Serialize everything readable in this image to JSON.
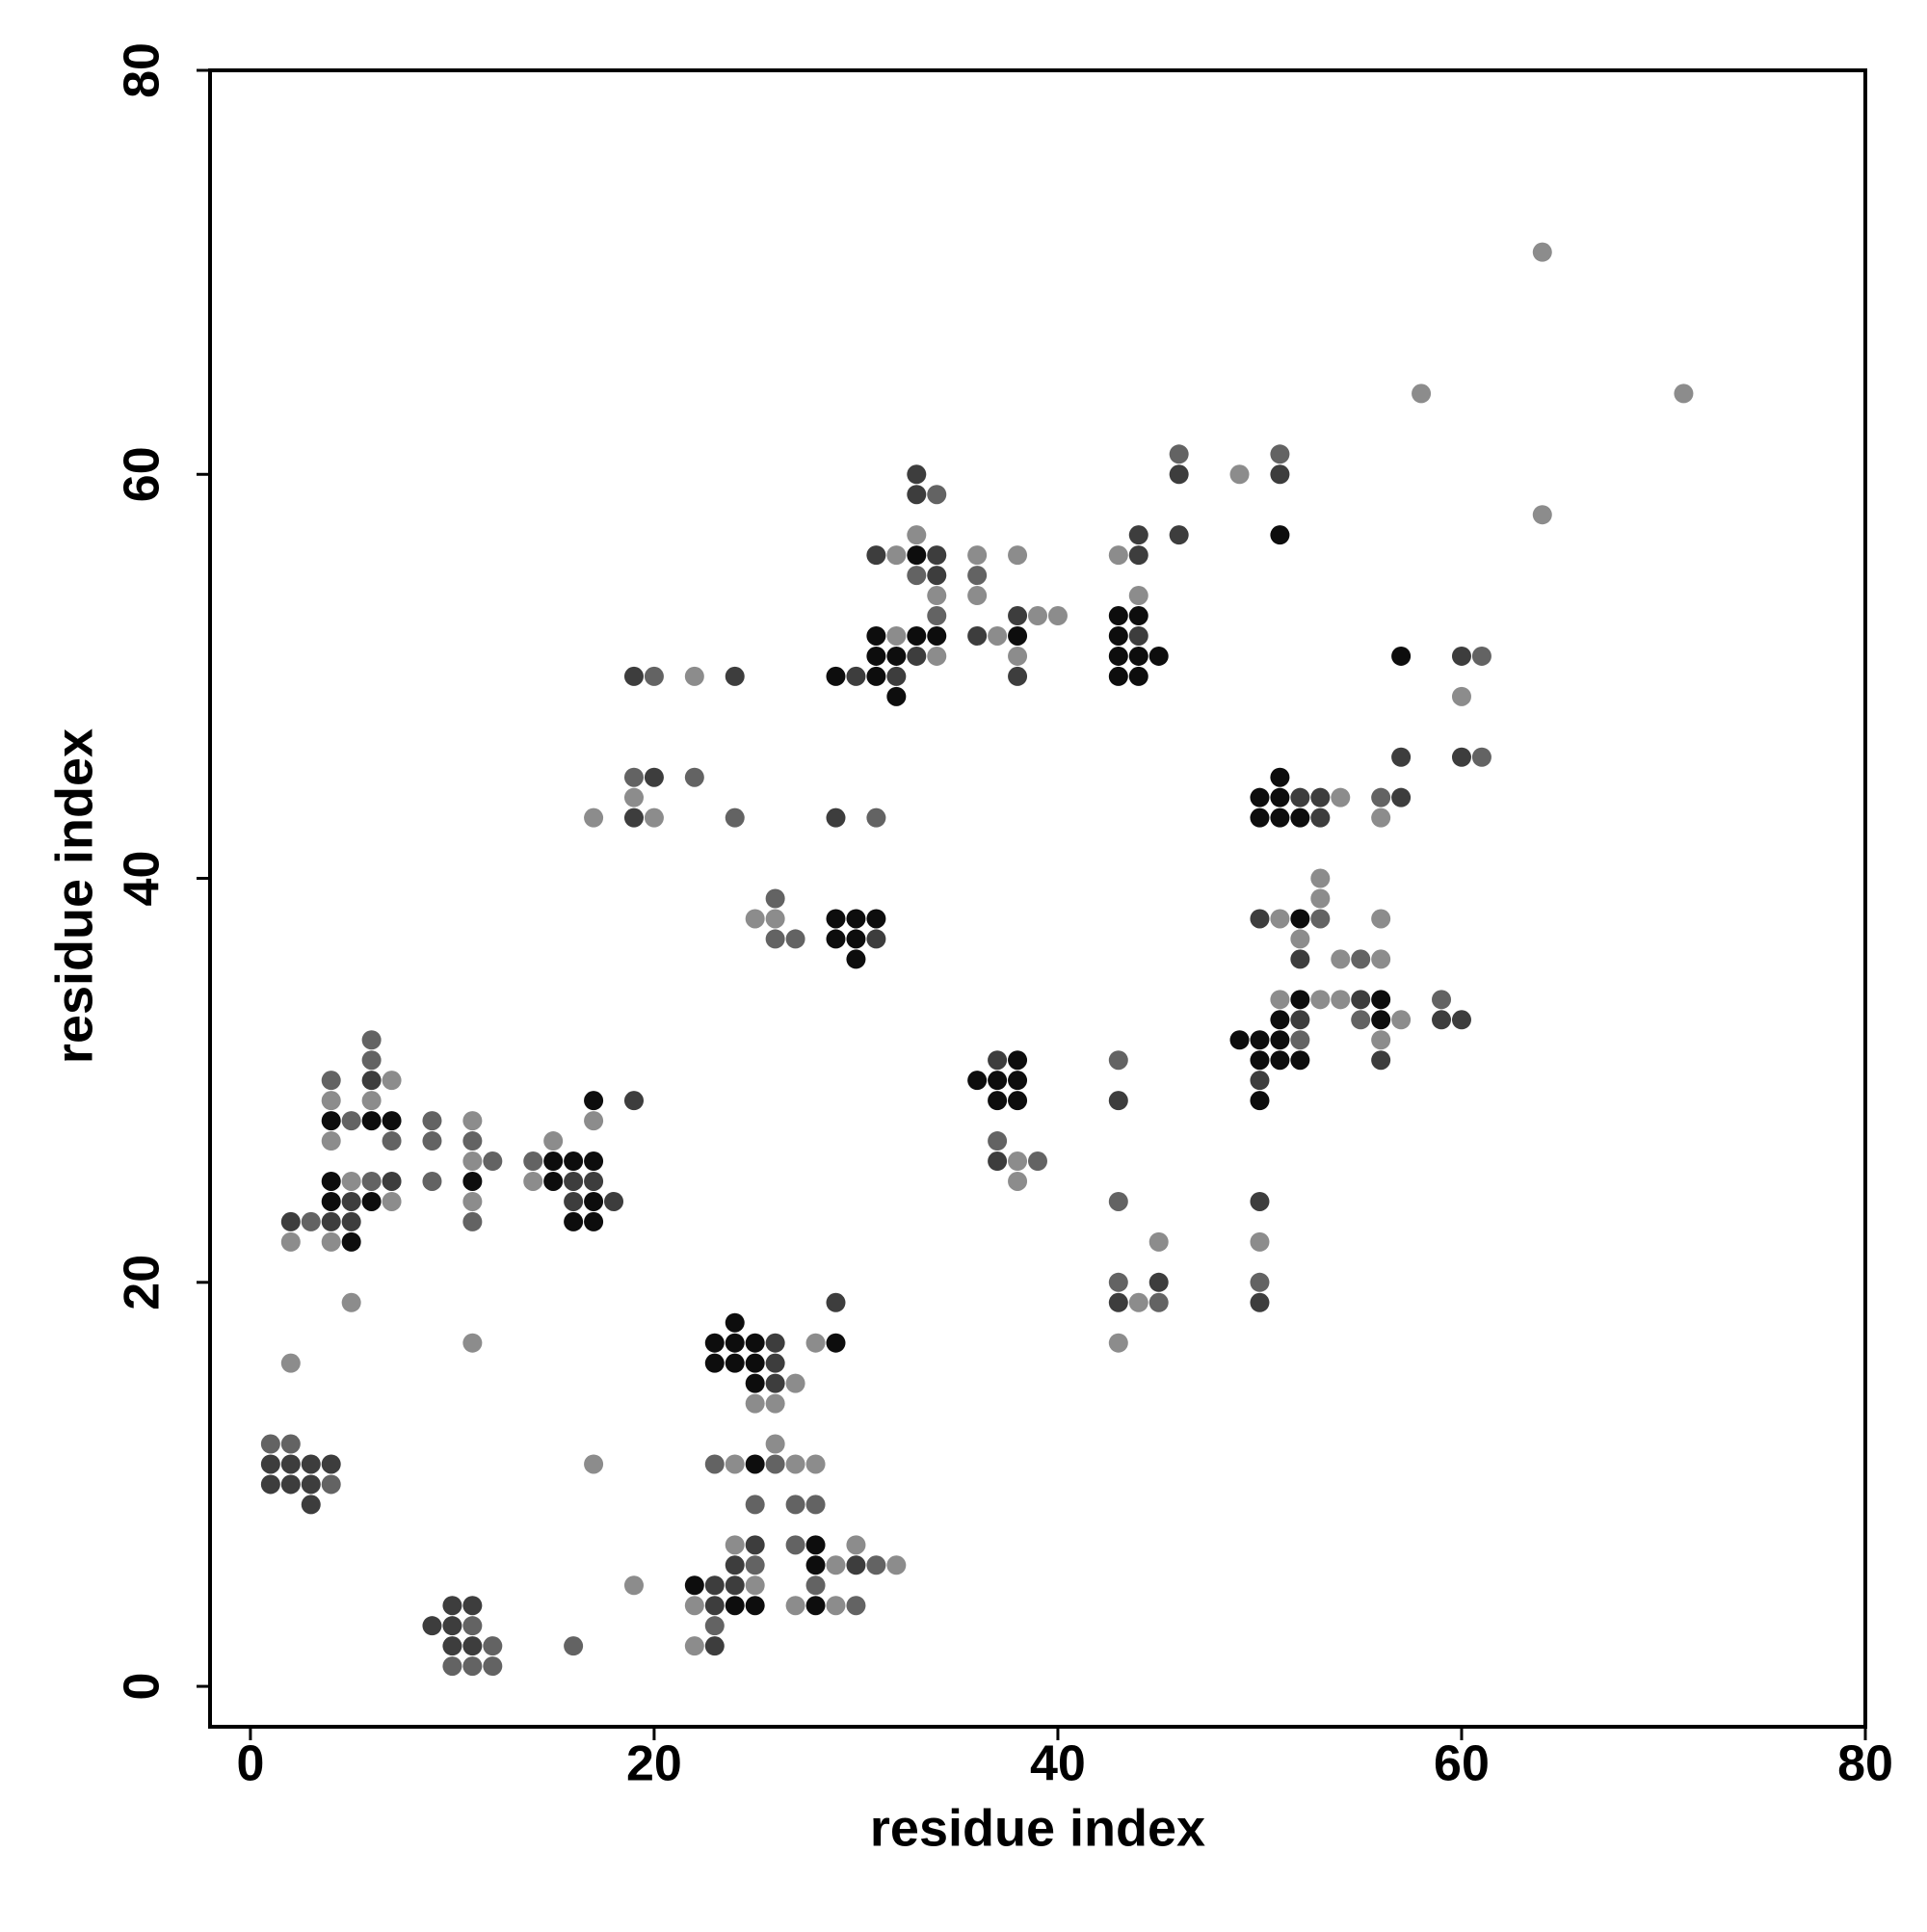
{
  "chart_data": {
    "type": "scatter",
    "xlabel": "residue index",
    "ylabel": "residue index",
    "xlim": [
      -2,
      80
    ],
    "ylim": [
      -2,
      80
    ],
    "xticks": [
      0,
      20,
      40,
      60,
      80
    ],
    "yticks": [
      0,
      20,
      40,
      60,
      80
    ],
    "series": [
      {
        "color": "#0d0d0d",
        "x": [
          4,
          6,
          7,
          4,
          4,
          6,
          5,
          11,
          17,
          15,
          16,
          17,
          15,
          17,
          16,
          17,
          29,
          30,
          31,
          29,
          30,
          30,
          33,
          31,
          33,
          34,
          29,
          31,
          31,
          32,
          32,
          38,
          43,
          44,
          43,
          43,
          44,
          45,
          43,
          44,
          51,
          57,
          51,
          50,
          51,
          50,
          51,
          52,
          52,
          52,
          56,
          51,
          56,
          49,
          50,
          51,
          50,
          51,
          52,
          50,
          38,
          36,
          37,
          38,
          37,
          38,
          24,
          23,
          24,
          25,
          29,
          23,
          24,
          25,
          25,
          25,
          28,
          28,
          22,
          24,
          25,
          28
        ],
        "y": [
          28,
          28,
          28,
          25,
          24,
          24,
          22,
          25,
          29,
          26,
          26,
          26,
          25,
          24,
          23,
          23,
          38,
          38,
          38,
          37,
          37,
          36,
          56,
          52,
          52,
          52,
          50,
          50,
          51,
          51,
          49,
          52,
          53,
          53,
          52,
          51,
          51,
          51,
          50,
          50,
          57,
          51,
          45,
          44,
          44,
          43,
          43,
          43,
          38,
          34,
          34,
          33,
          33,
          32,
          32,
          32,
          31,
          31,
          31,
          29,
          31,
          30,
          30,
          30,
          29,
          29,
          18,
          17,
          17,
          17,
          17,
          16,
          16,
          16,
          15,
          11,
          7,
          6,
          5,
          4,
          4,
          4
        ]
      },
      {
        "color": "#3d3d3d",
        "x": [
          1,
          2,
          3,
          4,
          1,
          2,
          3,
          3,
          10,
          11,
          9,
          10,
          10,
          11,
          6,
          7,
          5,
          2,
          4,
          5,
          19,
          16,
          17,
          16,
          18,
          19,
          24,
          20,
          19,
          29,
          31,
          33,
          33,
          31,
          34,
          34,
          30,
          32,
          33,
          36,
          38,
          38,
          46,
          44,
          44,
          46,
          44,
          51,
          60,
          57,
          60,
          52,
          53,
          57,
          53,
          50,
          52,
          55,
          52,
          59,
          60,
          56,
          50,
          37,
          37,
          43,
          45,
          43,
          50,
          50,
          29,
          26,
          26,
          26,
          25,
          24,
          30,
          23,
          24,
          23,
          23
        ],
        "y": [
          11,
          11,
          11,
          11,
          10,
          10,
          10,
          9,
          4,
          4,
          3,
          3,
          2,
          2,
          30,
          25,
          24,
          23,
          23,
          23,
          29,
          25,
          25,
          24,
          24,
          50,
          50,
          45,
          43,
          43,
          37,
          60,
          59,
          56,
          56,
          55,
          50,
          50,
          51,
          52,
          53,
          50,
          60,
          56,
          57,
          57,
          52,
          60,
          51,
          46,
          46,
          44,
          44,
          44,
          43,
          38,
          36,
          34,
          33,
          33,
          33,
          31,
          30,
          31,
          26,
          29,
          20,
          19,
          24,
          19,
          19,
          17,
          16,
          15,
          7,
          6,
          6,
          5,
          5,
          4,
          2
        ]
      },
      {
        "color": "#636363",
        "x": [
          1,
          2,
          4,
          11,
          12,
          10,
          11,
          12,
          16,
          6,
          6,
          4,
          5,
          7,
          6,
          3,
          9,
          9,
          11,
          12,
          9,
          11,
          14,
          20,
          19,
          22,
          24,
          26,
          26,
          27,
          31,
          34,
          33,
          34,
          36,
          46,
          51,
          61,
          61,
          56,
          53,
          55,
          59,
          55,
          52,
          37,
          39,
          43,
          43,
          43,
          45,
          50,
          23,
          26,
          25,
          27,
          28,
          27,
          25,
          31,
          28,
          30,
          23
        ],
        "y": [
          12,
          12,
          10,
          3,
          2,
          1,
          1,
          1,
          2,
          32,
          31,
          30,
          28,
          27,
          25,
          23,
          28,
          27,
          27,
          26,
          25,
          23,
          26,
          50,
          45,
          45,
          43,
          39,
          37,
          37,
          43,
          59,
          55,
          53,
          55,
          61,
          61,
          51,
          46,
          44,
          38,
          36,
          34,
          33,
          32,
          27,
          26,
          31,
          24,
          20,
          19,
          20,
          11,
          11,
          9,
          9,
          9,
          7,
          6,
          6,
          5,
          4,
          3
        ]
      },
      {
        "color": "#8c8c8c",
        "x": [
          2,
          11,
          5,
          17,
          19,
          7,
          4,
          6,
          4,
          5,
          7,
          2,
          4,
          11,
          11,
          11,
          17,
          15,
          14,
          22,
          19,
          17,
          20,
          25,
          26,
          33,
          32,
          34,
          32,
          34,
          36,
          38,
          36,
          37,
          39,
          40,
          38,
          43,
          44,
          49,
          58,
          64,
          71,
          64,
          60,
          54,
          56,
          53,
          53,
          51,
          56,
          52,
          54,
          56,
          51,
          53,
          54,
          57,
          56,
          38,
          38,
          45,
          44,
          43,
          50,
          28,
          27,
          25,
          26,
          26,
          24,
          27,
          28,
          24,
          30,
          29,
          32,
          25,
          22,
          27,
          29,
          22
        ],
        "y": [
          16,
          17,
          19,
          11,
          5,
          30,
          29,
          29,
          27,
          25,
          24,
          22,
          22,
          28,
          26,
          24,
          28,
          27,
          25,
          50,
          44,
          43,
          43,
          38,
          38,
          57,
          56,
          54,
          52,
          51,
          56,
          56,
          54,
          52,
          53,
          53,
          51,
          56,
          54,
          60,
          64,
          71,
          64,
          58,
          49,
          44,
          43,
          40,
          39,
          38,
          38,
          37,
          36,
          36,
          34,
          34,
          34,
          33,
          32,
          26,
          25,
          22,
          19,
          17,
          22,
          17,
          15,
          14,
          14,
          12,
          11,
          11,
          11,
          7,
          7,
          6,
          6,
          5,
          4,
          4,
          4,
          2
        ]
      }
    ]
  }
}
